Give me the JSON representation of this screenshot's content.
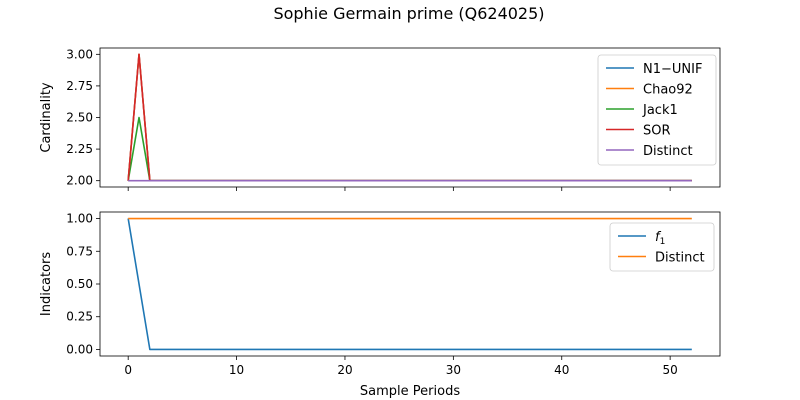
{
  "title": "Sophie Germain prime (Q624025)",
  "chart_data": [
    {
      "type": "line",
      "ylabel": "Cardinality",
      "xlabel": "",
      "xlim": [
        -2.6,
        54.6
      ],
      "ylim": [
        1.95,
        3.05
      ],
      "yticks": [
        2.0,
        2.25,
        2.5,
        2.75,
        3.0
      ],
      "ytick_labels": [
        "2.00",
        "2.25",
        "2.50",
        "2.75",
        "3.00"
      ],
      "xticks": [
        0,
        10,
        20,
        30,
        40,
        50
      ],
      "xtick_labels_shown": false,
      "legend_position": "top-right",
      "series": [
        {
          "name": "N1−UNIF",
          "color": "#1f77b4",
          "x": [
            0,
            1,
            2,
            52
          ],
          "y": [
            2.0,
            3.0,
            2.0,
            2.0
          ]
        },
        {
          "name": "Chao92",
          "color": "#ff7f0e",
          "x": [
            0,
            1,
            2,
            52
          ],
          "y": [
            2.0,
            3.0,
            2.0,
            2.0
          ]
        },
        {
          "name": "Jack1",
          "color": "#2ca02c",
          "x": [
            0,
            1,
            2,
            52
          ],
          "y": [
            2.0,
            2.5,
            2.0,
            2.0
          ]
        },
        {
          "name": "SOR",
          "color": "#d62728",
          "x": [
            0,
            1,
            2,
            52
          ],
          "y": [
            2.0,
            3.0,
            2.0,
            2.0
          ]
        },
        {
          "name": "Distinct",
          "color": "#9467bd",
          "x": [
            0,
            52
          ],
          "y": [
            2.0,
            2.0
          ]
        }
      ]
    },
    {
      "type": "line",
      "ylabel": "Indicators",
      "xlabel": "Sample Periods",
      "xlim": [
        -2.6,
        54.6
      ],
      "ylim": [
        -0.05,
        1.05
      ],
      "yticks": [
        0.0,
        0.25,
        0.5,
        0.75,
        1.0
      ],
      "ytick_labels": [
        "0.00",
        "0.25",
        "0.50",
        "0.75",
        "1.00"
      ],
      "xticks": [
        0,
        10,
        20,
        30,
        40,
        50
      ],
      "xtick_labels": [
        "0",
        "10",
        "20",
        "30",
        "40",
        "50"
      ],
      "legend_position": "top-right",
      "series": [
        {
          "name": "f",
          "name_subscript": "1",
          "color": "#1f77b4",
          "x": [
            0,
            2,
            52
          ],
          "y": [
            1.0,
            0.0,
            0.0
          ]
        },
        {
          "name": "Distinct",
          "color": "#ff7f0e",
          "x": [
            0,
            52
          ],
          "y": [
            1.0,
            1.0
          ]
        }
      ]
    }
  ]
}
